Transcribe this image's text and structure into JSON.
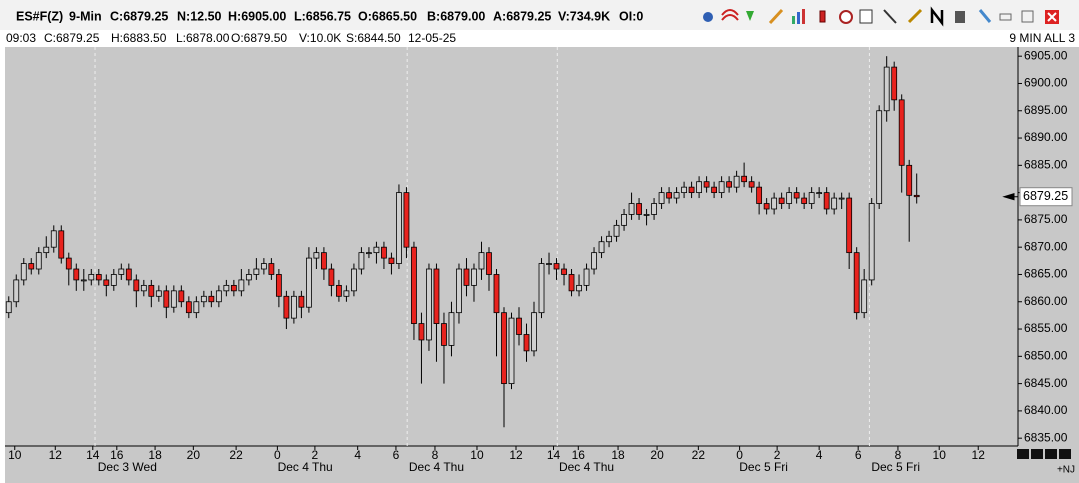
{
  "header": {
    "quote": [
      "ES#F(Z)",
      "9-Min",
      "C:6879.25",
      "N:12.50",
      "H:6905.00",
      "L:6856.75",
      "O:6865.50",
      "B:6879.00",
      "A:6879.25",
      "V:734.9K",
      "OI:0"
    ],
    "bar_info": [
      "09:03",
      "C:6879.25",
      "H:6883.50",
      "L:6878.00",
      "O:6879.50",
      "V:10.0K",
      "S:6844.50",
      "12-05-25"
    ],
    "layout_name": "9 MIN ALL 3",
    "corner_label": "+NJ"
  },
  "chart_data": {
    "type": "candlestick",
    "up_color": "#cfcfcf",
    "down_color": "#e8231e",
    "xlim": [
      0,
      135
    ],
    "ylim": [
      6833.75,
      6906.5
    ],
    "yticks": [
      {
        "value": 6835,
        "label": "6835.00"
      },
      {
        "value": 6840,
        "label": "6840.00"
      },
      {
        "value": 6845,
        "label": "6845.00"
      },
      {
        "value": 6850,
        "label": "6850.00"
      },
      {
        "value": 6855,
        "label": "6855.00"
      },
      {
        "value": 6860,
        "label": "6860.00"
      },
      {
        "value": 6865,
        "label": "6865.00"
      },
      {
        "value": 6870,
        "label": "6870.00"
      },
      {
        "value": 6875,
        "label": "6875.00"
      },
      {
        "value": 6880,
        "label": "6880.00"
      },
      {
        "value": 6885,
        "label": "6885.00"
      },
      {
        "value": 6890,
        "label": "6890.00"
      },
      {
        "value": 6895,
        "label": "6895.00"
      },
      {
        "value": 6900,
        "label": "6900.00"
      },
      {
        "value": 6905,
        "label": "6905.00"
      }
    ],
    "xticks": [
      {
        "value": 1.3,
        "label": "10"
      },
      {
        "value": 6.7,
        "label": "12"
      },
      {
        "value": 11.7,
        "label": "14"
      },
      {
        "value": 14.9,
        "label": "16"
      },
      {
        "value": 20,
        "label": "18"
      },
      {
        "value": 25.1,
        "label": "20"
      },
      {
        "value": 30.8,
        "label": "22"
      },
      {
        "value": 36.3,
        "label": "0"
      },
      {
        "value": 41.3,
        "label": "2"
      },
      {
        "value": 47,
        "label": "4"
      },
      {
        "value": 52.1,
        "label": "6"
      },
      {
        "value": 57.3,
        "label": "8"
      },
      {
        "value": 62.9,
        "label": "10"
      },
      {
        "value": 68.1,
        "label": "12"
      },
      {
        "value": 73.1,
        "label": "14"
      },
      {
        "value": 76.4,
        "label": "16"
      },
      {
        "value": 81.7,
        "label": "18"
      },
      {
        "value": 86.9,
        "label": "20"
      },
      {
        "value": 92.4,
        "label": "22"
      },
      {
        "value": 97.9,
        "label": "0"
      },
      {
        "value": 102.9,
        "label": "2"
      },
      {
        "value": 108.5,
        "label": "4"
      },
      {
        "value": 113.7,
        "label": "6"
      },
      {
        "value": 119,
        "label": "8"
      },
      {
        "value": 124.5,
        "label": "10"
      },
      {
        "value": 129.7,
        "label": "12"
      }
    ],
    "date_ticks": [
      {
        "value": 16.3,
        "label": "Dec 3 Wed"
      },
      {
        "value": 40,
        "label": "Dec 4 Thu"
      },
      {
        "value": 57.5,
        "label": "Dec 4 Thu"
      },
      {
        "value": 77.5,
        "label": "Dec 4 Thu"
      },
      {
        "value": 101.1,
        "label": "Dec 5 Fri"
      },
      {
        "value": 118.7,
        "label": "Dec 5 Fri"
      }
    ],
    "session_breaks": [
      12,
      53.6,
      73.6,
      115.2
    ],
    "last_price": 6879.25,
    "open": [
      6858,
      6860,
      6864,
      6867,
      6866,
      6869,
      6870,
      6873,
      6868,
      6866,
      6864,
      6864,
      6865,
      6864,
      6863,
      6865,
      6866,
      6864,
      6862,
      6863,
      6861,
      6862,
      6859,
      6862,
      6860,
      6858,
      6860,
      6861,
      6860,
      6862,
      6863,
      6862,
      6864,
      6865,
      6866,
      6867,
      6865,
      6861,
      6857,
      6861,
      6859,
      6868,
      6869,
      6866,
      6863,
      6861,
      6862,
      6866,
      6869,
      6869,
      6870,
      6868,
      6867,
      6880,
      6870,
      6856,
      6853,
      6866,
      6856,
      6852,
      6858,
      6866,
      6863,
      6866,
      6869,
      6865,
      6858,
      6845,
      6857,
      6854,
      6851,
      6858,
      6867,
      6867,
      6866,
      6865,
      6862,
      6863,
      6866,
      6869,
      6871,
      6872,
      6874,
      6876,
      6878,
      6876,
      6876,
      6878,
      6880,
      6879,
      6880,
      6881,
      6880,
      6882,
      6881,
      6880,
      6882,
      6881,
      6883,
      6882,
      6881,
      6878,
      6877,
      6879,
      6878,
      6880,
      6879,
      6878,
      6880,
      6880,
      6877,
      6879,
      6879,
      6869,
      6858,
      6864,
      6878,
      6895,
      6903,
      6897,
      6885,
      6879.5
    ],
    "high": [
      6861,
      6865,
      6868,
      6868,
      6870,
      6872,
      6874,
      6874,
      6869,
      6867,
      6866,
      6866,
      6866,
      6865,
      6866,
      6867,
      6867,
      6865,
      6864,
      6864,
      6863,
      6863,
      6863,
      6863,
      6861,
      6861,
      6862,
      6862,
      6863,
      6864,
      6864,
      6866,
      6866,
      6868,
      6868,
      6868,
      6866,
      6862,
      6862,
      6862,
      6870,
      6870,
      6870,
      6867,
      6864,
      6863,
      6867,
      6870,
      6870,
      6871,
      6871,
      6869,
      6881.5,
      6881,
      6871,
      6858,
      6867,
      6867,
      6858,
      6860,
      6867,
      6868,
      6867,
      6871,
      6870,
      6866,
      6859,
      6858,
      6859,
      6856,
      6860,
      6868,
      6869,
      6868,
      6867,
      6866,
      6865,
      6867,
      6870,
      6872,
      6873,
      6875,
      6877,
      6880,
      6879,
      6877,
      6879,
      6881,
      6881,
      6881,
      6882,
      6882,
      6883,
      6883,
      6882,
      6883,
      6883,
      6884,
      6885.5,
      6883,
      6882,
      6879,
      6880,
      6880,
      6881,
      6881,
      6880,
      6881,
      6881,
      6881,
      6880,
      6880,
      6880,
      6870,
      6866,
      6879,
      6896,
      6905,
      6904,
      6898,
      6886,
      6883.5
    ],
    "low": [
      6857,
      6859,
      6863,
      6865,
      6865,
      6868,
      6869,
      6867,
      6863,
      6862,
      6862,
      6863,
      6863,
      6861,
      6862,
      6864,
      6863,
      6859,
      6861,
      6859,
      6860,
      6857,
      6858,
      6859,
      6857,
      6857,
      6859,
      6859,
      6859,
      6861,
      6861,
      6861,
      6863,
      6864,
      6865,
      6864,
      6859,
      6855,
      6856,
      6857,
      6858,
      6866,
      6864,
      6861,
      6860,
      6860,
      6861,
      6865,
      6868,
      6867,
      6866,
      6865,
      6866,
      6868,
      6853,
      6845,
      6851,
      6849,
      6845,
      6850,
      6856,
      6861,
      6860,
      6864,
      6862,
      6850,
      6837,
      6844,
      6852,
      6849,
      6850,
      6857,
      6865,
      6864,
      6863,
      6861,
      6861,
      6862,
      6865,
      6868,
      6870,
      6871,
      6873,
      6875,
      6875,
      6874,
      6875,
      6877,
      6878,
      6878,
      6879,
      6879,
      6879,
      6880,
      6879,
      6879,
      6880,
      6880,
      6881,
      6880,
      6876,
      6876,
      6876,
      6877,
      6877,
      6878,
      6877,
      6877,
      6879,
      6876,
      6876,
      6877,
      6866,
      6856.75,
      6857,
      6863,
      6877,
      6893,
      6895,
      6880,
      6871,
      6878
    ],
    "close": [
      6860,
      6864,
      6867,
      6866,
      6869,
      6870,
      6873,
      6868,
      6866,
      6864,
      6864,
      6865,
      6864,
      6863,
      6865,
      6866,
      6864,
      6862,
      6863,
      6861,
      6862,
      6859,
      6862,
      6860,
      6858,
      6860,
      6861,
      6860,
      6862,
      6863,
      6862,
      6864,
      6865,
      6866,
      6867,
      6865,
      6861,
      6857,
      6861,
      6859,
      6868,
      6869,
      6866,
      6863,
      6861,
      6862,
      6866,
      6869,
      6869,
      6870,
      6868,
      6867,
      6880,
      6870,
      6856,
      6853,
      6866,
      6856,
      6852,
      6858,
      6866,
      6863,
      6866,
      6869,
      6865,
      6858,
      6845,
      6857,
      6854,
      6851,
      6858,
      6867,
      6867,
      6866,
      6865,
      6862,
      6863,
      6866,
      6869,
      6871,
      6872,
      6874,
      6876,
      6878,
      6876,
      6876,
      6878,
      6880,
      6879,
      6880,
      6881,
      6880,
      6882,
      6881,
      6880,
      6882,
      6881,
      6883,
      6882,
      6881,
      6878,
      6877,
      6879,
      6878,
      6880,
      6879,
      6878,
      6880,
      6880,
      6877,
      6879,
      6879,
      6869,
      6858,
      6864,
      6878,
      6895,
      6903,
      6897,
      6885,
      6879.5,
      6879.25
    ]
  }
}
